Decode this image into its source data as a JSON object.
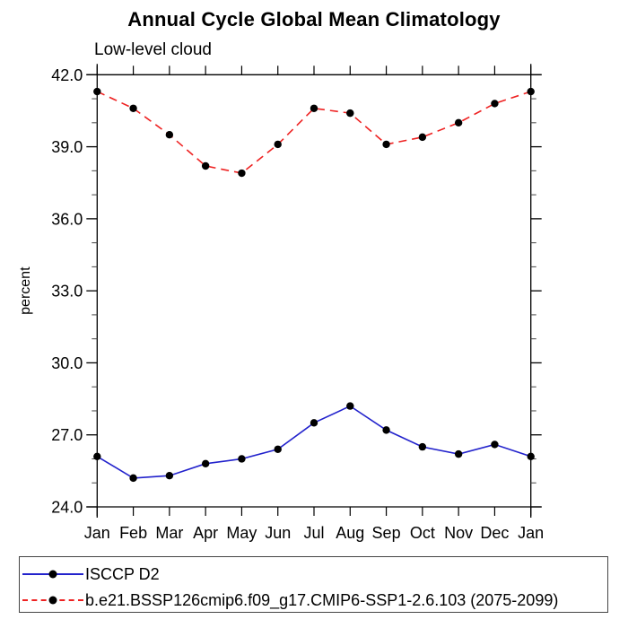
{
  "title": "Annual Cycle Global Mean Climatology",
  "subtitle": "Low-level cloud",
  "chart_data": {
    "type": "line",
    "title": "Annual Cycle Global Mean Climatology",
    "subtitle": "Low-level cloud",
    "xlabel": "",
    "ylabel": "percent",
    "categories": [
      "Jan",
      "Feb",
      "Mar",
      "Apr",
      "May",
      "Jun",
      "Jul",
      "Aug",
      "Sep",
      "Oct",
      "Nov",
      "Dec",
      "Jan"
    ],
    "ylim": [
      24.0,
      42.0
    ],
    "ytick_major": 3.0,
    "ytick_minor": 1.0,
    "y_tick_labels": [
      "24.0",
      "27.0",
      "30.0",
      "33.0",
      "36.0",
      "39.0",
      "42.0"
    ],
    "grid": false,
    "legend_position": "bottom",
    "axis_color": "#000000",
    "marker_color": "#000000",
    "series": [
      {
        "name": "ISCCP D2",
        "color": "#2222cc",
        "style": "solid",
        "marker": "circle",
        "values": [
          26.1,
          25.2,
          25.3,
          25.8,
          26.0,
          26.4,
          27.5,
          28.2,
          27.2,
          26.5,
          26.2,
          26.6,
          26.1
        ]
      },
      {
        "name": "b.e21.BSSP126cmip6.f09_g17.CMIP6-SSP1-2.6.103 (2075-2099)",
        "color": "#ee2222",
        "style": "dashed",
        "marker": "circle",
        "values": [
          41.3,
          40.6,
          39.5,
          38.2,
          37.9,
          39.1,
          40.6,
          40.4,
          39.1,
          39.4,
          40.0,
          40.8,
          41.3
        ]
      }
    ]
  }
}
